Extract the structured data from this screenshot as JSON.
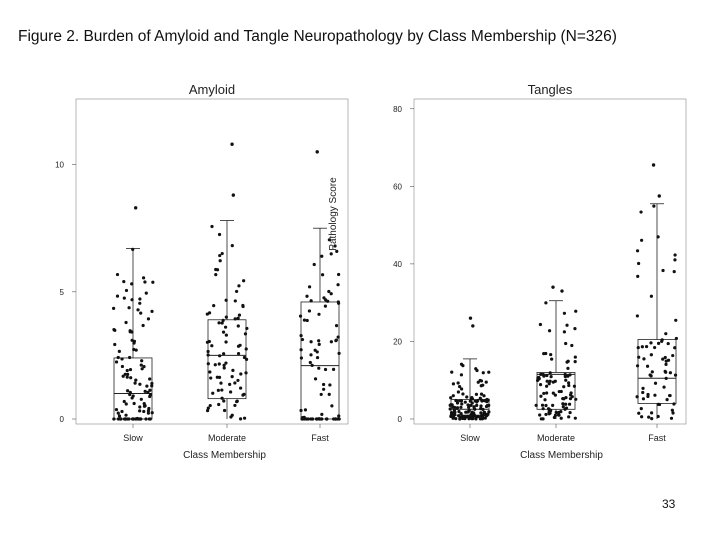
{
  "figure_title": "Figure 2. Burden of Amyloid and Tangle Neuropathology by Class Membership (N=326)",
  "page_number": "33",
  "colors": {
    "points": "#111111",
    "box": "#222222",
    "frame": "#888888",
    "background": "#ffffff"
  },
  "chart_data": [
    {
      "type": "box",
      "title": "Amyloid",
      "xlabel": "Class Membership",
      "ylabel": "Pathology Score",
      "ylim": [
        0,
        12.5
      ],
      "yticks": [
        0,
        5,
        10
      ],
      "ytick_labels": [
        "0",
        "5",
        "10"
      ],
      "grid": false,
      "categories": [
        "Slow",
        "Moderate",
        "Fast"
      ],
      "boxes": [
        {
          "category": "Slow",
          "q1": 0,
          "median": 1,
          "q3": 2.4,
          "whisker_low": 0,
          "whisker_high": 6.7,
          "outliers": [
            8.3
          ]
        },
        {
          "category": "Moderate",
          "q1": 0.8,
          "median": 2.5,
          "q3": 3.9,
          "whisker_low": 0,
          "whisker_high": 7.8,
          "outliers": [
            8.8,
            10.8
          ]
        },
        {
          "category": "Fast",
          "q1": 0,
          "median": 2.1,
          "q3": 4.6,
          "whisker_low": 0,
          "whisker_high": 7.5,
          "outliers": [
            10.5
          ]
        }
      ]
    },
    {
      "type": "box",
      "title": "Tangles",
      "xlabel": "Class Membership",
      "ylabel": "",
      "ylim": [
        0,
        82
      ],
      "yticks": [
        0,
        20,
        40,
        60,
        80
      ],
      "ytick_labels": [
        "0",
        "20",
        "40",
        "60",
        "80"
      ],
      "grid": false,
      "categories": [
        "Slow",
        "Moderate",
        "Fast"
      ],
      "boxes": [
        {
          "category": "Slow",
          "q1": 1,
          "median": 2.5,
          "q3": 5,
          "whisker_low": 0,
          "whisker_high": 15.5,
          "outliers": [
            24,
            26
          ]
        },
        {
          "category": "Moderate",
          "q1": 2.5,
          "median": 11.5,
          "q3": 12,
          "whisker_low": 0,
          "whisker_high": 30.5,
          "outliers": [
            33,
            34
          ]
        },
        {
          "category": "Fast",
          "q1": 4,
          "median": 10.5,
          "q3": 20.5,
          "whisker_low": 0,
          "whisker_high": 55.5,
          "outliers": [
            57.5,
            65.5
          ]
        }
      ]
    }
  ]
}
